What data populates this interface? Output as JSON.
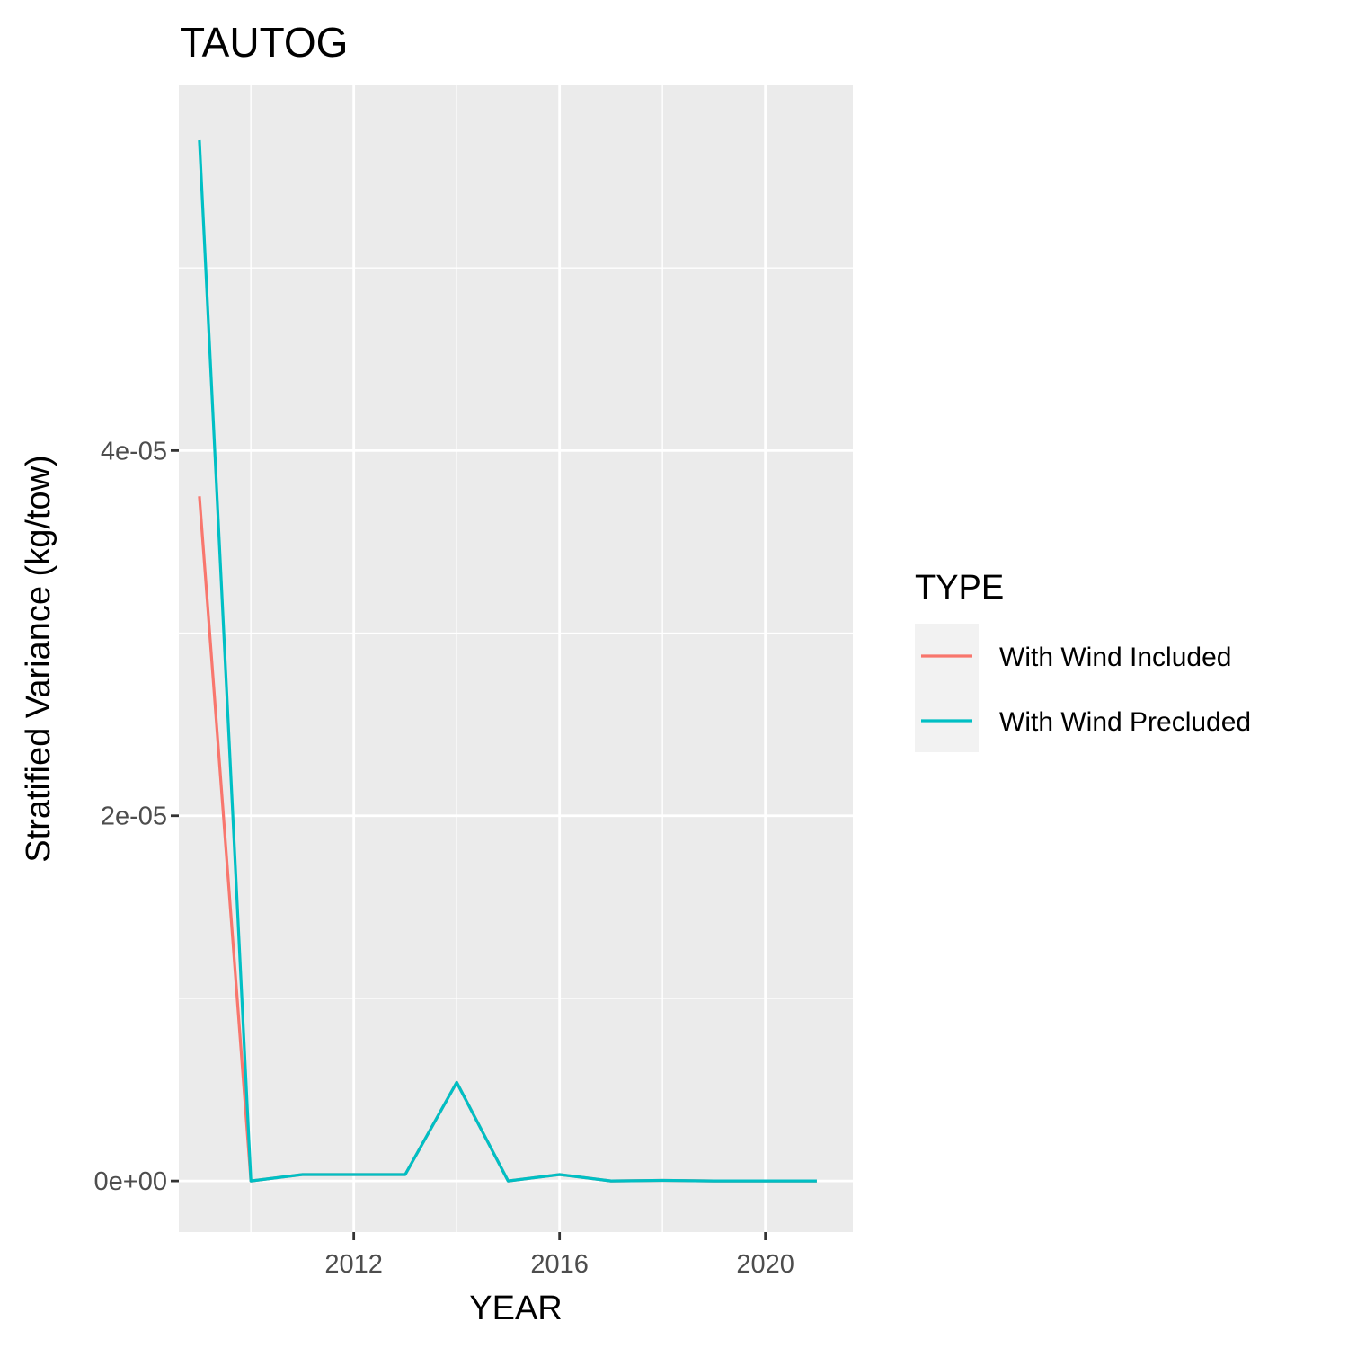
{
  "chart_data": {
    "type": "line",
    "title": "TAUTOG",
    "xlabel": "YEAR",
    "ylabel": "Stratified Variance (kg/tow)",
    "xlim": [
      2008.6,
      2021.7
    ],
    "ylim": [
      -2.8e-06,
      6e-05
    ],
    "x_ticks": [
      2012,
      2016,
      2020
    ],
    "x_tick_labels": [
      "2012",
      "2016",
      "2020"
    ],
    "x_minor": [
      2010,
      2014,
      2018
    ],
    "y_ticks": [
      0,
      2e-05,
      4e-05
    ],
    "y_tick_labels": [
      "0e+00",
      "2e-05",
      "4e-05"
    ],
    "y_minor": [
      1e-05,
      3e-05,
      5e-05
    ],
    "grid": true,
    "panel_background": "#ebebeb",
    "legend": {
      "title": "TYPE",
      "position": "right",
      "background": "#f2f2f2"
    },
    "series": [
      {
        "name": "With Wind Included",
        "color": "#f8766d",
        "x": [
          2009,
          2010,
          2011,
          2012,
          2013,
          2014,
          2015,
          2016,
          2017,
          2018,
          2019,
          2020,
          2021
        ],
        "y": [
          3.75e-05,
          0.0,
          3.5e-07,
          3.5e-07,
          3.5e-07,
          5.4e-06,
          0.0,
          3.5e-07,
          0.0,
          3e-08,
          0.0,
          0.0,
          0.0
        ]
      },
      {
        "name": "With Wind Precluded",
        "color": "#00bfc4",
        "x": [
          2009,
          2010,
          2011,
          2012,
          2013,
          2014,
          2015,
          2016,
          2017,
          2018,
          2019,
          2020,
          2021
        ],
        "y": [
          5.7e-05,
          0.0,
          3.5e-07,
          3.5e-07,
          3.5e-07,
          5.4e-06,
          0.0,
          3.5e-07,
          0.0,
          3e-08,
          0.0,
          0.0,
          0.0
        ]
      }
    ]
  }
}
